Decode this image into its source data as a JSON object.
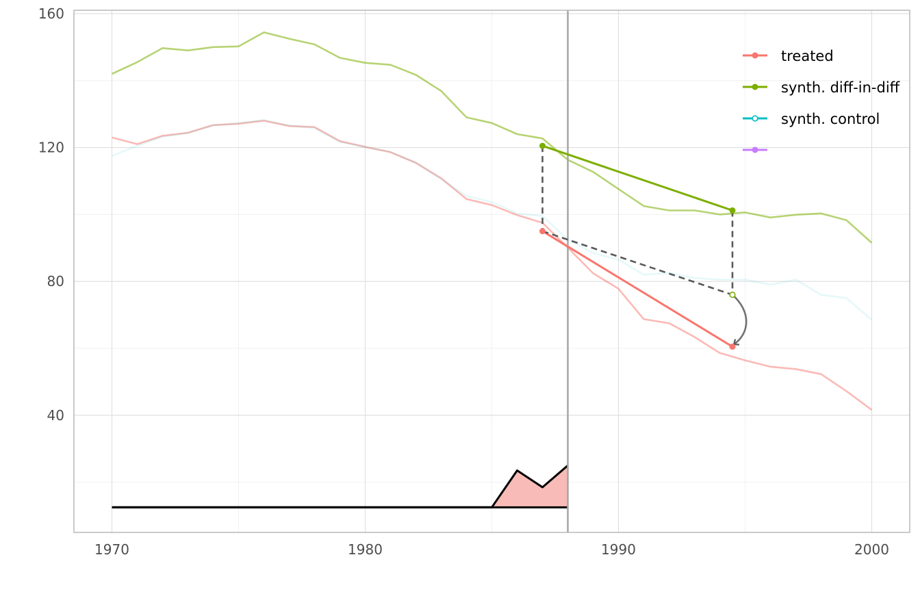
{
  "chart_data": {
    "type": "line",
    "title": "",
    "xlabel": "",
    "ylabel": "",
    "xlim": [
      1968.5,
      2001.5
    ],
    "ylim": [
      5,
      161
    ],
    "x_ticks": [
      1970,
      1980,
      1990,
      2000
    ],
    "x_tick_labels": [
      "1970",
      "1980",
      "1990",
      "2000"
    ],
    "y_ticks": [
      40,
      80,
      120,
      160
    ],
    "y_tick_labels": [
      "40",
      "80",
      "120",
      "160"
    ],
    "grid": true,
    "legend_position": "top-right",
    "treatment_year": 1988,
    "colors": {
      "treated": "#F8766D",
      "sdid": "#7CAE00",
      "synth_control": "#00BFC4",
      "fourth": "#C77CFF",
      "arrow": "#595959",
      "vline": "#a6a6a6",
      "weights_fill": "#F8BBB7"
    },
    "legend": [
      {
        "key": "treated",
        "label": "treated",
        "color": "#F8766D",
        "filled": true
      },
      {
        "key": "sdid",
        "label": "synth. diff-in-diff",
        "color": "#7CAE00",
        "filled": true
      },
      {
        "key": "sc",
        "label": "synth. control",
        "color": "#00BFC4",
        "filled": false
      },
      {
        "key": "fourth",
        "label": "",
        "color": "#C77CFF",
        "filled": true
      }
    ],
    "series": [
      {
        "key": "sdid_trajectory",
        "color": "#7CAE00",
        "opacity": 0.55,
        "x": [
          1970,
          1971,
          1972,
          1973,
          1974,
          1975,
          1976,
          1977,
          1978,
          1979,
          1980,
          1981,
          1982,
          1983,
          1984,
          1985,
          1986,
          1987,
          1988,
          1989,
          1990,
          1991,
          1992,
          1993,
          1994,
          1995,
          1996,
          1997,
          1998,
          1999,
          2000
        ],
        "y": [
          142,
          145.5,
          149.7,
          149,
          150,
          150.2,
          154.4,
          152.5,
          150.8,
          146.8,
          145.3,
          144.7,
          141.7,
          136.9,
          129,
          127.3,
          124,
          122.7,
          116.3,
          112.7,
          107.6,
          102.5,
          101.2,
          101.2,
          100,
          100.6,
          99.1,
          99.9,
          100.3,
          98.3,
          91.5
        ]
      },
      {
        "key": "treated_trajectory",
        "color": "#F8766D",
        "opacity": 0.5,
        "x": [
          1970,
          1971,
          1972,
          1973,
          1974,
          1975,
          1976,
          1977,
          1978,
          1979,
          1980,
          1981,
          1982,
          1983,
          1984,
          1985,
          1986,
          1987,
          1988,
          1989,
          1990,
          1991,
          1992,
          1993,
          1994,
          1995,
          1996,
          1997,
          1998,
          1999,
          2000
        ],
        "y": [
          123,
          121,
          123.5,
          124.4,
          126.7,
          127.1,
          128,
          126.4,
          126.1,
          121.9,
          120.2,
          118.6,
          115.4,
          110.8,
          104.6,
          102.8,
          99.8,
          97.5,
          90.1,
          82.4,
          77.8,
          68.7,
          67.5,
          63.4,
          58.6,
          56.4,
          54.5,
          53.8,
          52.3,
          47.2,
          41.6
        ]
      },
      {
        "key": "sc_trajectory",
        "color": "#00BFC4",
        "opacity": 0.1,
        "x": [
          1970,
          1971,
          1972,
          1973,
          1974,
          1975,
          1976,
          1977,
          1978,
          1979,
          1980,
          1981,
          1982,
          1983,
          1984,
          1985,
          1986,
          1987,
          1988,
          1989,
          1990,
          1991,
          1992,
          1993,
          1994,
          1995,
          1996,
          1997,
          1998,
          1999,
          2000
        ],
        "y": [
          117.5,
          120.5,
          123.2,
          124.3,
          126.6,
          127.3,
          128.2,
          126.6,
          125.8,
          121.7,
          120.1,
          118.7,
          115.5,
          110.5,
          105.5,
          103.7,
          100.3,
          99.5,
          92.5,
          88.5,
          86.5,
          82,
          82.5,
          81,
          80.5,
          80.5,
          79,
          80.5,
          76,
          75,
          68.5
        ]
      }
    ],
    "points": {
      "sdid_pre": [
        1987,
        120.5
      ],
      "sdid_post": [
        1994.5,
        101.2
      ],
      "treated_pre": [
        1987,
        95
      ],
      "treated_post": [
        1994.5,
        60.5
      ],
      "counterfactual_post": [
        1994.5,
        76
      ]
    },
    "weights": {
      "x": [
        1970,
        1971,
        1972,
        1973,
        1974,
        1975,
        1976,
        1977,
        1978,
        1979,
        1980,
        1981,
        1982,
        1983,
        1984,
        1985,
        1986,
        1987,
        1988
      ],
      "y": [
        12.5,
        12.5,
        12.5,
        12.5,
        12.5,
        12.5,
        12.5,
        12.5,
        12.5,
        12.5,
        12.5,
        12.5,
        12.5,
        12.5,
        12.5,
        12.5,
        23.5,
        18.5,
        25
      ],
      "baseline": 12.5
    }
  }
}
